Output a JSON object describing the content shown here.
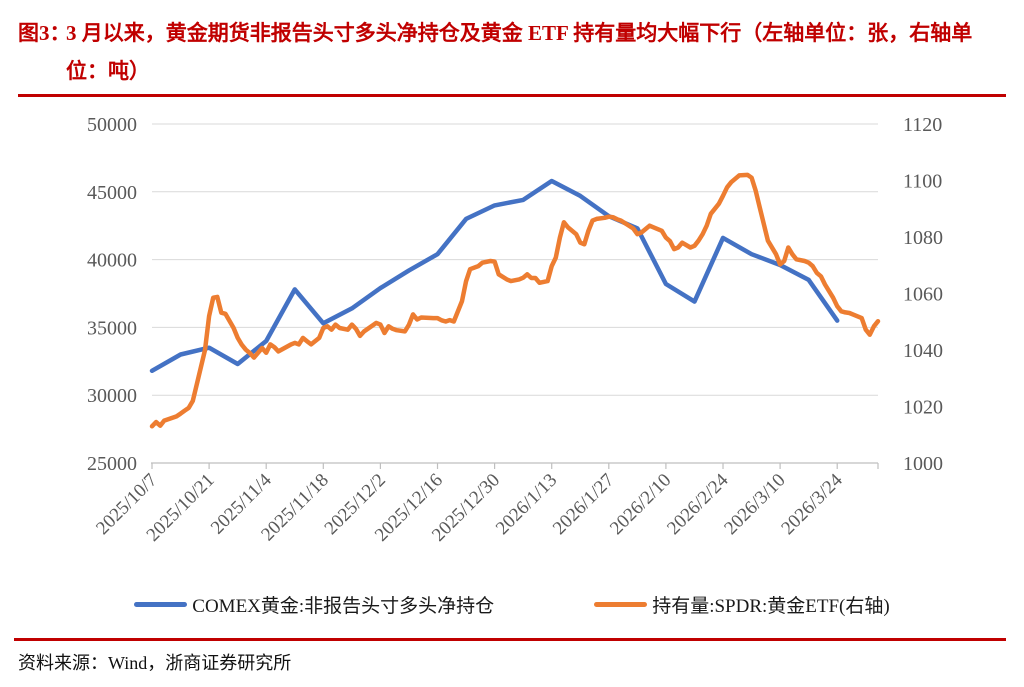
{
  "header": {
    "figure_label": "图3：",
    "title": "3 月以来，黄金期货非报告头寸多头净持仓及黄金 ETF 持有量均大幅下行（左轴单位：张，右轴单位：吨）",
    "accent_color": "#C00000"
  },
  "footer": {
    "source": "资料来源：Wind，浙商证券研究所"
  },
  "chart_data": {
    "type": "line",
    "title": "图3：3月以来，黄金期货非报告头寸多头净持仓及黄金ETF持有量均大幅下行",
    "left_axis": {
      "label_unit": "张",
      "min": 25000,
      "max": 50000,
      "step": 5000
    },
    "right_axis": {
      "label_unit": "吨",
      "min": 1000,
      "max": 1120,
      "step": 20
    },
    "grid": "horizontal",
    "legend_position": "bottom",
    "x_start": "2025/10/7",
    "x_span_days": 178,
    "x_ticks": [
      "2025/10/7",
      "2025/10/21",
      "2025/11/4",
      "2025/11/18",
      "2025/12/2",
      "2025/12/16",
      "2025/12/30",
      "2026/1/13",
      "2026/1/27",
      "2026/2/10",
      "2026/2/24",
      "2026/3/10",
      "2026/3/24"
    ],
    "gridline_color": "#d9d9d9",
    "axis_color": "#bfbfbf",
    "tick_label_color": "#595959",
    "series": [
      {
        "name": "COMEX黄金:非报告头寸多头净持仓",
        "axis": "left",
        "color": "#4472C4",
        "points": [
          [
            "2025/10/7",
            31800
          ],
          [
            "2025/10/14",
            33000
          ],
          [
            "2025/10/21",
            33500
          ],
          [
            "2025/10/28",
            32300
          ],
          [
            "2025/11/4",
            34000
          ],
          [
            "2025/11/11",
            37800
          ],
          [
            "2025/11/18",
            35300
          ],
          [
            "2025/11/25",
            36400
          ],
          [
            "2025/12/2",
            37900
          ],
          [
            "2025/12/9",
            39200
          ],
          [
            "2025/12/16",
            40400
          ],
          [
            "2025/12/23",
            43000
          ],
          [
            "2025/12/30",
            44000
          ],
          [
            "2026/1/6",
            44400
          ],
          [
            "2026/1/13",
            45800
          ],
          [
            "2026/1/20",
            44700
          ],
          [
            "2026/1/27",
            43200
          ],
          [
            "2026/2/3",
            42300
          ],
          [
            "2026/2/10",
            38200
          ],
          [
            "2026/2/17",
            36900
          ],
          [
            "2026/2/24",
            41600
          ],
          [
            "2026/3/3",
            40400
          ],
          [
            "2026/3/10",
            39600
          ],
          [
            "2026/3/17",
            38500
          ],
          [
            "2026/3/24",
            35500
          ]
        ]
      },
      {
        "name": "持有量:SPDR:黄金ETF(右轴)",
        "axis": "right",
        "color": "#ED7D31",
        "points": [
          [
            "2025/10/7",
            1013.0
          ],
          [
            "2025/10/8",
            1014.5
          ],
          [
            "2025/10/9",
            1013.2
          ],
          [
            "2025/10/10",
            1015.0
          ],
          [
            "2025/10/13",
            1016.5
          ],
          [
            "2025/10/14",
            1017.5
          ],
          [
            "2025/10/15",
            1018.5
          ],
          [
            "2025/10/16",
            1019.5
          ],
          [
            "2025/10/17",
            1022.0
          ],
          [
            "2025/10/18",
            1028.0
          ],
          [
            "2025/10/20",
            1040.0
          ],
          [
            "2025/10/21",
            1052.0
          ],
          [
            "2025/10/22",
            1058.5
          ],
          [
            "2025/10/23",
            1058.8
          ],
          [
            "2025/10/24",
            1053.2
          ],
          [
            "2025/10/25",
            1052.8
          ],
          [
            "2025/10/27",
            1047.8
          ],
          [
            "2025/10/28",
            1044.3
          ],
          [
            "2025/10/29",
            1041.9
          ],
          [
            "2025/10/30",
            1040.1
          ],
          [
            "2025/10/31",
            1038.9
          ],
          [
            "2025/11/1",
            1037.3
          ],
          [
            "2025/11/3",
            1040.7
          ],
          [
            "2025/11/4",
            1039.0
          ],
          [
            "2025/11/5",
            1042.0
          ],
          [
            "2025/11/6",
            1041.0
          ],
          [
            "2025/11/7",
            1039.5
          ],
          [
            "2025/11/10",
            1041.9
          ],
          [
            "2025/11/11",
            1042.5
          ],
          [
            "2025/11/12",
            1042.0
          ],
          [
            "2025/11/13",
            1044.3
          ],
          [
            "2025/11/14",
            1043.1
          ],
          [
            "2025/11/15",
            1042.0
          ],
          [
            "2025/11/17",
            1044.3
          ],
          [
            "2025/11/18",
            1047.8
          ],
          [
            "2025/11/19",
            1048.4
          ],
          [
            "2025/11/20",
            1047.2
          ],
          [
            "2025/11/21",
            1049.0
          ],
          [
            "2025/11/22",
            1047.8
          ],
          [
            "2025/11/24",
            1047.2
          ],
          [
            "2025/11/25",
            1049.0
          ],
          [
            "2025/11/26",
            1047.5
          ],
          [
            "2025/11/27",
            1045.0
          ],
          [
            "2025/11/28",
            1046.6
          ],
          [
            "2025/12/1",
            1049.6
          ],
          [
            "2025/12/2",
            1049.0
          ],
          [
            "2025/12/3",
            1046.0
          ],
          [
            "2025/12/4",
            1048.4
          ],
          [
            "2025/12/5",
            1047.5
          ],
          [
            "2025/12/6",
            1047.0
          ],
          [
            "2025/12/8",
            1046.6
          ],
          [
            "2025/12/9",
            1049.0
          ],
          [
            "2025/12/10",
            1052.6
          ],
          [
            "2025/12/11",
            1050.8
          ],
          [
            "2025/12/12",
            1051.5
          ],
          [
            "2025/12/15",
            1051.3
          ],
          [
            "2025/12/16",
            1051.3
          ],
          [
            "2025/12/17",
            1050.5
          ],
          [
            "2025/12/18",
            1050.1
          ],
          [
            "2025/12/19",
            1050.6
          ],
          [
            "2025/12/20",
            1050.1
          ],
          [
            "2025/12/22",
            1057.3
          ],
          [
            "2025/12/23",
            1064.4
          ],
          [
            "2025/12/24",
            1068.6
          ],
          [
            "2025/12/26",
            1069.7
          ],
          [
            "2025/12/27",
            1070.9
          ],
          [
            "2025/12/29",
            1071.5
          ],
          [
            "2025/12/30",
            1071.3
          ],
          [
            "2025/12/31",
            1066.8
          ],
          [
            "2026/1/2",
            1065.0
          ],
          [
            "2026/1/3",
            1064.4
          ],
          [
            "2026/1/5",
            1065.0
          ],
          [
            "2026/1/6",
            1065.6
          ],
          [
            "2026/1/7",
            1066.8
          ],
          [
            "2026/1/8",
            1065.5
          ],
          [
            "2026/1/9",
            1065.5
          ],
          [
            "2026/1/10",
            1063.8
          ],
          [
            "2026/1/12",
            1064.4
          ],
          [
            "2026/1/13",
            1069.7
          ],
          [
            "2026/1/14",
            1072.7
          ],
          [
            "2026/1/15",
            1079.8
          ],
          [
            "2026/1/16",
            1085.2
          ],
          [
            "2026/1/17",
            1083.4
          ],
          [
            "2026/1/19",
            1081.0
          ],
          [
            "2026/1/20",
            1078.0
          ],
          [
            "2026/1/21",
            1077.4
          ],
          [
            "2026/1/22",
            1082.2
          ],
          [
            "2026/1/23",
            1085.8
          ],
          [
            "2026/1/24",
            1086.4
          ],
          [
            "2026/1/26",
            1086.8
          ],
          [
            "2026/1/27",
            1087.2
          ],
          [
            "2026/1/28",
            1087.0
          ],
          [
            "2026/1/29",
            1086.3
          ],
          [
            "2026/1/30",
            1085.8
          ],
          [
            "2026/2/2",
            1083.0
          ],
          [
            "2026/2/3",
            1081.0
          ],
          [
            "2026/2/4",
            1081.6
          ],
          [
            "2026/2/5",
            1082.8
          ],
          [
            "2026/2/6",
            1084.0
          ],
          [
            "2026/2/7",
            1083.4
          ],
          [
            "2026/2/9",
            1082.2
          ],
          [
            "2026/2/10",
            1079.8
          ],
          [
            "2026/2/11",
            1078.5
          ],
          [
            "2026/2/12",
            1075.7
          ],
          [
            "2026/2/13",
            1076.3
          ],
          [
            "2026/2/14",
            1078.0
          ],
          [
            "2026/2/16",
            1076.3
          ],
          [
            "2026/2/17",
            1076.9
          ],
          [
            "2026/2/18",
            1078.7
          ],
          [
            "2026/2/19",
            1081.0
          ],
          [
            "2026/2/20",
            1084.0
          ],
          [
            "2026/2/21",
            1088.2
          ],
          [
            "2026/2/23",
            1091.8
          ],
          [
            "2026/2/24",
            1094.6
          ],
          [
            "2026/2/25",
            1097.6
          ],
          [
            "2026/2/26",
            1099.4
          ],
          [
            "2026/2/27",
            1100.6
          ],
          [
            "2026/2/28",
            1101.8
          ],
          [
            "2026/3/2",
            1102.0
          ],
          [
            "2026/3/3",
            1101.0
          ],
          [
            "2026/3/4",
            1096.5
          ],
          [
            "2026/3/5",
            1090.5
          ],
          [
            "2026/3/6",
            1084.6
          ],
          [
            "2026/3/7",
            1078.7
          ],
          [
            "2026/3/9",
            1073.9
          ],
          [
            "2026/3/10",
            1070.3
          ],
          [
            "2026/3/11",
            1071.5
          ],
          [
            "2026/3/12",
            1076.3
          ],
          [
            "2026/3/13",
            1073.9
          ],
          [
            "2026/3/14",
            1072.1
          ],
          [
            "2026/3/16",
            1071.5
          ],
          [
            "2026/3/17",
            1070.9
          ],
          [
            "2026/3/18",
            1069.7
          ],
          [
            "2026/3/19",
            1067.3
          ],
          [
            "2026/3/20",
            1066.1
          ],
          [
            "2026/3/21",
            1063.2
          ],
          [
            "2026/3/23",
            1058.5
          ],
          [
            "2026/3/24",
            1055.5
          ],
          [
            "2026/3/25",
            1053.7
          ],
          [
            "2026/3/26",
            1053.3
          ],
          [
            "2026/3/27",
            1053.1
          ],
          [
            "2026/3/28",
            1052.5
          ],
          [
            "2026/3/30",
            1051.3
          ],
          [
            "2026/3/31",
            1047.2
          ],
          [
            "2026/4/1",
            1045.4
          ],
          [
            "2026/4/2",
            1048.4
          ],
          [
            "2026/4/3",
            1050.2
          ]
        ]
      }
    ]
  }
}
